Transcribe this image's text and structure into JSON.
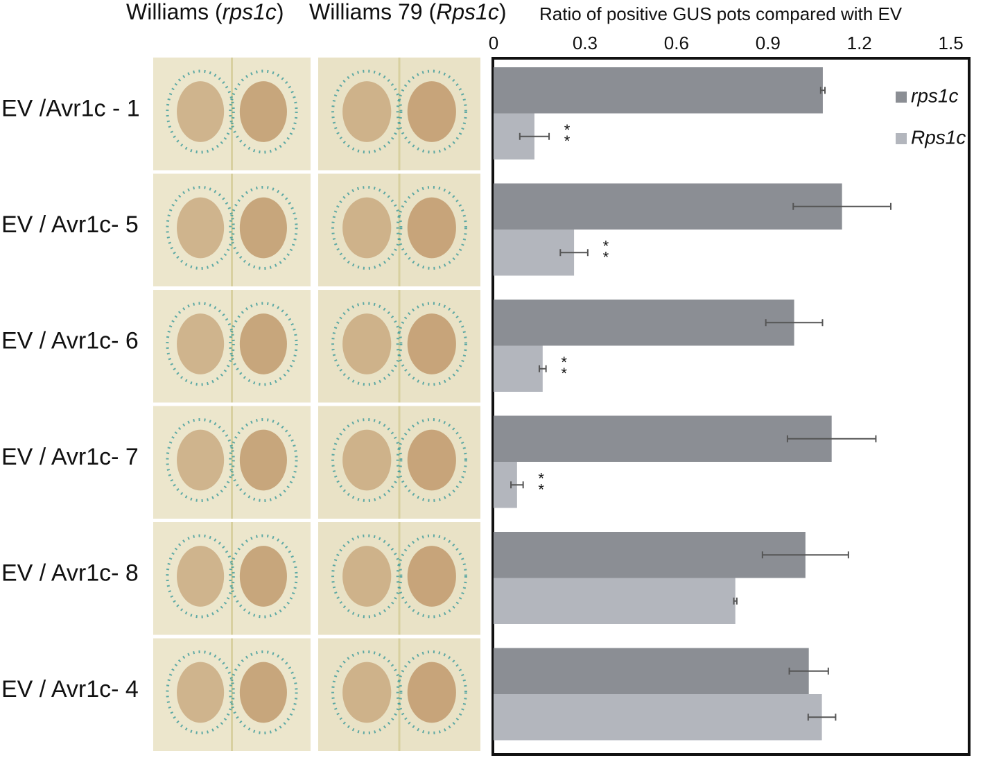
{
  "chart_data": {
    "type": "bar",
    "orientation": "horizontal",
    "column_headers": [
      {
        "prefix": "Williams (",
        "italic": "rps1c",
        "suffix": ")"
      },
      {
        "prefix": "Williams 79 (",
        "italic": "Rps1c",
        "suffix": ")"
      }
    ],
    "x_label": "Ratio of positive GUS pots compared with EV",
    "categories": [
      "EV /Avr1c - 1",
      "EV / Avr1c- 5",
      "EV / Avr1c- 6",
      "EV / Avr1c- 7",
      "EV / Avr1c- 8",
      "EV / Avr1c- 4"
    ],
    "series": [
      {
        "name": "rps1c",
        "color": "#8b8e94",
        "values": [
          1.08,
          1.143,
          0.986,
          1.109,
          1.023,
          1.034
        ],
        "errors": [
          0.007,
          0.16,
          0.093,
          0.145,
          0.141,
          0.064
        ]
      },
      {
        "name": "Rps1c",
        "color": "#b3b6bd",
        "values": [
          0.134,
          0.264,
          0.161,
          0.077,
          0.793,
          1.077
        ],
        "errors": [
          0.048,
          0.045,
          0.011,
          0.02,
          0.005,
          0.045
        ]
      }
    ],
    "annotations": [
      {
        "category": 0,
        "text": "**"
      },
      {
        "category": 1,
        "text": "**"
      },
      {
        "category": 2,
        "text": "**"
      },
      {
        "category": 3,
        "text": "**"
      }
    ],
    "xlim": [
      0,
      1.56
    ],
    "xticks": [
      0,
      0.3,
      0.6,
      0.9,
      1.2,
      1.5
    ],
    "legend": "top-right"
  }
}
